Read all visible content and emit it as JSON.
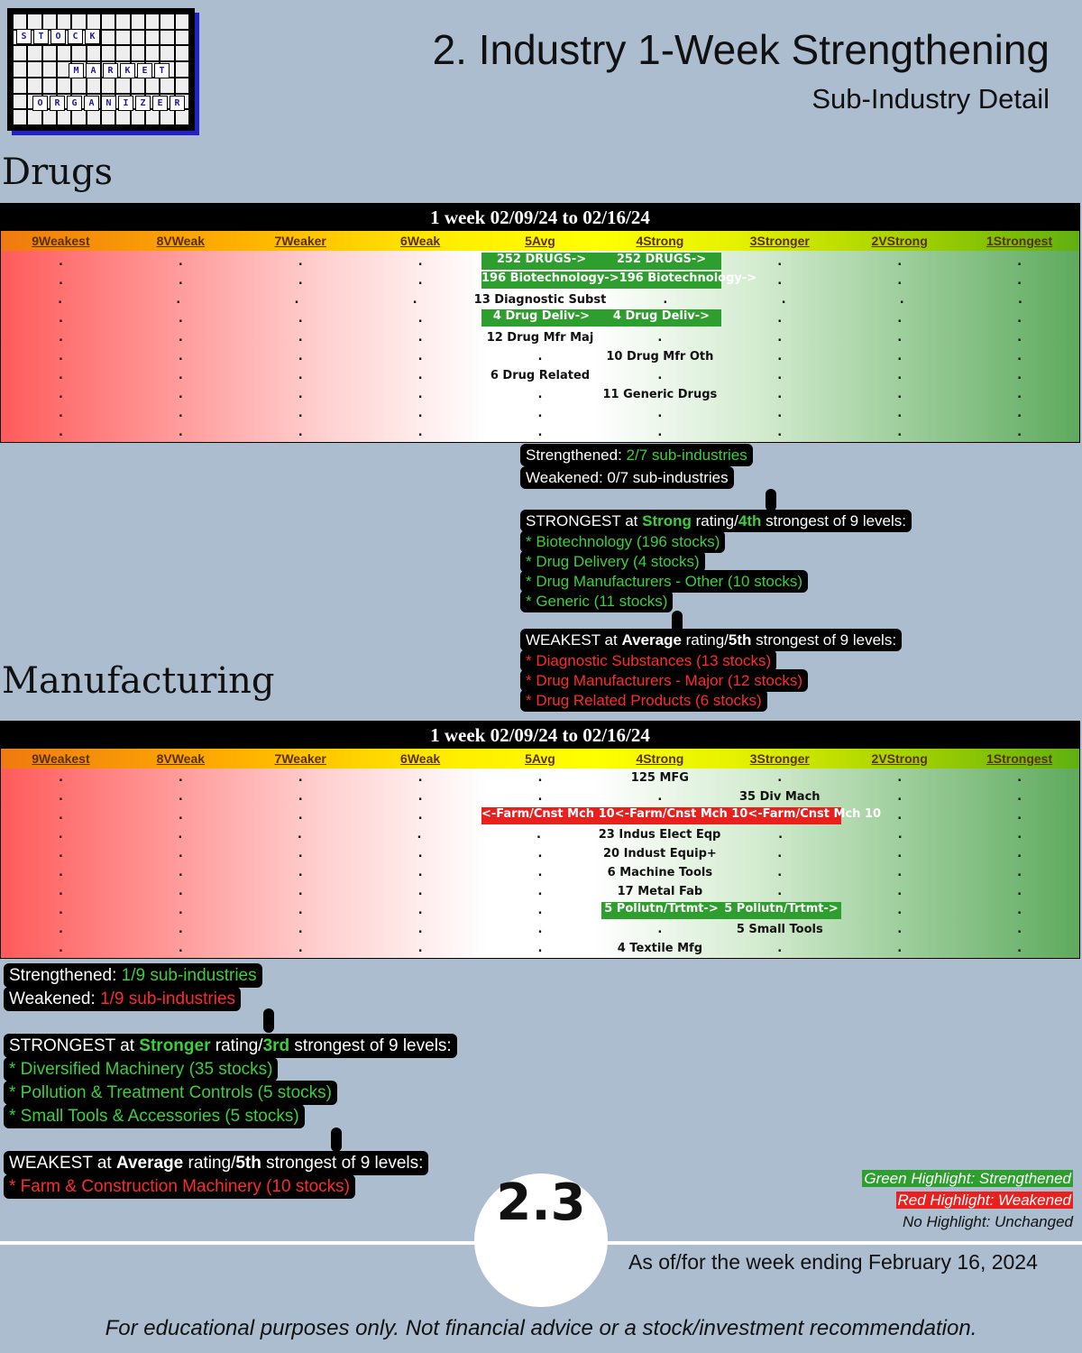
{
  "logo": {
    "row1": [
      "S",
      "T",
      "O",
      "C",
      "K"
    ],
    "row2": [
      "M",
      "A",
      "R",
      "K",
      "E",
      "T"
    ],
    "row3": [
      "O",
      "R",
      "G",
      "A",
      "N",
      "I",
      "Z",
      "E",
      "R"
    ]
  },
  "header": {
    "title": "2. Industry 1-Week Strengthening",
    "subtitle": "Sub-Industry Detail"
  },
  "levels": [
    "9Weakest",
    "8VWeak",
    "7Weaker",
    "6Weak",
    "5Avg",
    "4Strong",
    "3Stronger",
    "2VStrong",
    "1Strongest"
  ],
  "drugs": {
    "section_title": "Drugs",
    "table_title": "1 week 02/09/24 to 02/16/24",
    "rows": [
      [
        ".",
        ".",
        ".",
        ".",
        "252 DRUGS->",
        "252 DRUGS->",
        ".",
        ".",
        "."
      ],
      [
        ".",
        ".",
        ".",
        ".",
        "196 Biotechnology->",
        "196 Biotechnology->",
        ".",
        ".",
        "."
      ],
      [
        ".",
        ".",
        ".",
        ".",
        "13 Diagnostic Subst",
        ".",
        ".",
        ".",
        "."
      ],
      [
        ".",
        ".",
        ".",
        ".",
        "4 Drug Deliv->",
        "4 Drug Deliv->",
        ".",
        ".",
        "."
      ],
      [
        ".",
        ".",
        ".",
        ".",
        "12 Drug Mfr Maj",
        ".",
        ".",
        ".",
        "."
      ],
      [
        ".",
        ".",
        ".",
        ".",
        ".",
        "10 Drug Mfr Oth",
        ".",
        ".",
        "."
      ],
      [
        ".",
        ".",
        ".",
        ".",
        "6 Drug Related",
        ".",
        ".",
        ".",
        "."
      ],
      [
        ".",
        ".",
        ".",
        ".",
        ".",
        "11 Generic Drugs",
        ".",
        ".",
        "."
      ],
      [
        ".",
        ".",
        ".",
        ".",
        ".",
        ".",
        ".",
        ".",
        "."
      ],
      [
        ".",
        ".",
        ".",
        ".",
        ".",
        ".",
        ".",
        ".",
        "."
      ]
    ],
    "summary": {
      "strengthened_label": "Strengthened: ",
      "strengthened_value": "2/7 sub-industries",
      "weakened_label": "Weakened: ",
      "weakened_value": "0/7 sub-industries",
      "strongest": {
        "prefix": "STRONGEST at ",
        "rating": "Strong",
        "mid": " rating/",
        "rank": "4th",
        "suffix": " strongest of 9 levels:",
        "items": [
          "* Biotechnology (196 stocks)",
          "* Drug Delivery (4 stocks)",
          "* Drug Manufacturers - Other (10 stocks)",
          "* Generic (11 stocks)"
        ]
      },
      "weakest": {
        "prefix": "WEAKEST at ",
        "rating": "Average",
        "mid": " rating/",
        "rank": "5th",
        "suffix": " strongest of 9 levels:",
        "items": [
          "* Diagnostic Substances (13 stocks)",
          "* Drug Manufacturers - Major (12 stocks)",
          "* Drug Related Products (6 stocks)"
        ]
      }
    }
  },
  "mfg": {
    "section_title": "Manufacturing",
    "table_title": "1 week 02/09/24 to 02/16/24",
    "rows": [
      [
        ".",
        ".",
        ".",
        ".",
        ".",
        "125 MFG",
        ".",
        ".",
        "."
      ],
      [
        ".",
        ".",
        ".",
        ".",
        ".",
        ".",
        "35 Div Mach",
        ".",
        "."
      ],
      [
        ".",
        ".",
        ".",
        ".",
        "<-Farm/Cnst Mch 10",
        "<-Farm/Cnst Mch 10",
        "<-Farm/Cnst Mch 10",
        ".",
        "."
      ],
      [
        ".",
        ".",
        ".",
        ".",
        ".",
        "23 Indus Elect Eqp",
        ".",
        ".",
        "."
      ],
      [
        ".",
        ".",
        ".",
        ".",
        ".",
        "20 Indust Equip+",
        ".",
        ".",
        "."
      ],
      [
        ".",
        ".",
        ".",
        ".",
        ".",
        "6 Machine Tools",
        ".",
        ".",
        "."
      ],
      [
        ".",
        ".",
        ".",
        ".",
        ".",
        "17 Metal Fab",
        ".",
        ".",
        "."
      ],
      [
        ".",
        ".",
        ".",
        ".",
        ".",
        "5 Pollutn/Trtmt->",
        "5 Pollutn/Trtmt->",
        ".",
        "."
      ],
      [
        ".",
        ".",
        ".",
        ".",
        ".",
        ".",
        "5 Small Tools",
        ".",
        "."
      ],
      [
        ".",
        ".",
        ".",
        ".",
        ".",
        "4 Textile Mfg",
        ".",
        ".",
        "."
      ]
    ],
    "summary": {
      "strengthened_label": "Strengthened: ",
      "strengthened_value": "1/9 sub-industries",
      "weakened_label": "Weakened: ",
      "weakened_value": "1/9 sub-industries",
      "strongest": {
        "prefix": "STRONGEST at ",
        "rating": "Stronger",
        "mid": " rating/",
        "rank": "3rd",
        "suffix": " strongest of 9 levels:",
        "items": [
          "* Diversified Machinery (35 stocks)",
          "* Pollution & Treatment Controls (5 stocks)",
          "* Small Tools & Accessories (5 stocks)"
        ]
      },
      "weakest": {
        "prefix": "WEAKEST at ",
        "rating": "Average",
        "mid": " rating/",
        "rank": "5th",
        "suffix": " strongest of 9 levels:",
        "items": [
          "* Farm & Construction Machinery (10 stocks)"
        ]
      }
    }
  },
  "legend": {
    "green": "Green Highlight: Strengthened",
    "red": "Red Highlight: Weakened",
    "none": "No Highlight: Unchanged"
  },
  "footer": {
    "badge": "2.3",
    "as_of": "As of/for the week ending February 16, 2024",
    "disclaimer": "For educational purposes only. Not financial advice or a stock/investment recommendation."
  },
  "colors": {
    "strengthened": "#2e9e2e",
    "weakened": "#e8201e",
    "background": "#acbdd0"
  }
}
